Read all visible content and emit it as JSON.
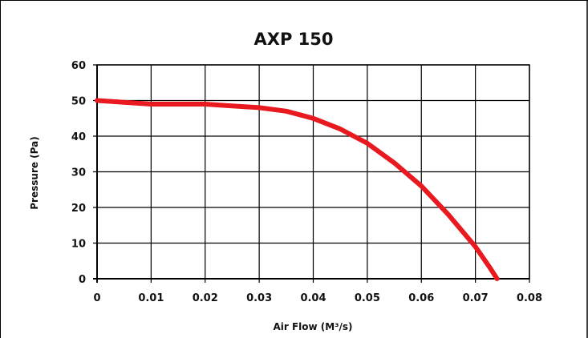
{
  "chart_data": {
    "type": "line",
    "title": "AXP 150",
    "xlabel": "Air Flow (M³/s)",
    "ylabel": "Pressure (Pa)",
    "xlim": [
      0,
      0.08
    ],
    "ylim": [
      0,
      60
    ],
    "x_ticks": [
      "0",
      "0.01",
      "0.02",
      "0.03",
      "0.04",
      "0.05",
      "0.06",
      "0.07",
      "0.08"
    ],
    "y_ticks": [
      "0",
      "10",
      "20",
      "30",
      "40",
      "50",
      "60"
    ],
    "grid": true,
    "legend": "none",
    "colors": {
      "line": "#e8191f",
      "grid": "#000000",
      "frame": "#000000"
    },
    "series": [
      {
        "x": [
          0,
          0.005,
          0.01,
          0.02,
          0.025,
          0.03,
          0.035,
          0.04,
          0.045,
          0.05,
          0.055,
          0.06,
          0.065,
          0.07,
          0.0725,
          0.074
        ],
        "y": [
          50,
          49.5,
          49,
          49,
          48.5,
          48,
          47,
          45,
          42,
          38,
          32.5,
          26,
          18,
          9,
          3.5,
          0
        ]
      }
    ]
  }
}
